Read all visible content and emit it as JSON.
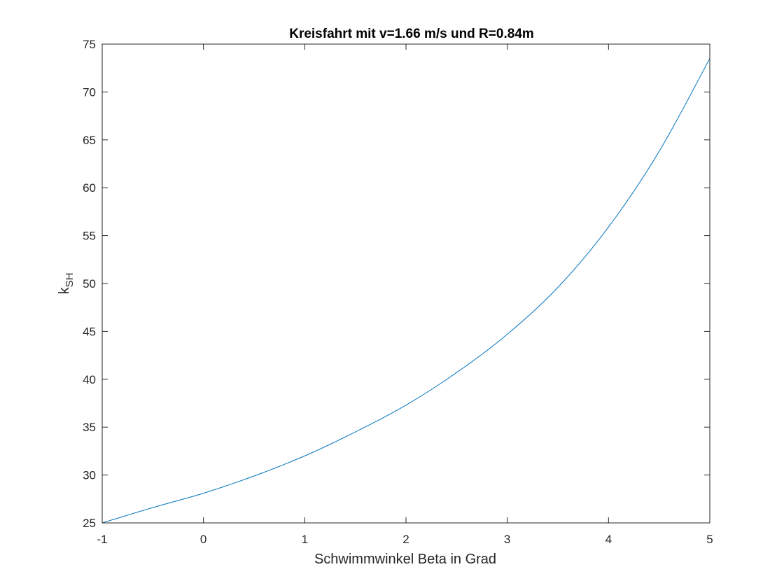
{
  "chart_data": {
    "type": "line",
    "title": "Kreisfahrt mit v=1.66 m/s und R=0.84m",
    "xlabel": "Schwimmwinkel Beta in Grad",
    "ylabel_main": "k",
    "ylabel_sub": "SH",
    "xlim": [
      -1,
      5
    ],
    "ylim": [
      25,
      75
    ],
    "xticks": [
      -1,
      0,
      1,
      2,
      3,
      4,
      5
    ],
    "yticks": [
      25,
      30,
      35,
      40,
      45,
      50,
      55,
      60,
      65,
      70,
      75
    ],
    "xtick_labels": [
      "-1",
      "0",
      "1",
      "2",
      "3",
      "4",
      "5"
    ],
    "ytick_labels": [
      "25",
      "30",
      "35",
      "40",
      "45",
      "50",
      "55",
      "60",
      "65",
      "70",
      "75"
    ],
    "grid": false,
    "line_color": "#0072BD",
    "series": [
      {
        "x": [
          -1,
          -0.5,
          0,
          0.5,
          1,
          1.5,
          2,
          2.5,
          3,
          3.5,
          4,
          4.5,
          5
        ],
        "y": [
          25.0,
          26.6,
          28.1,
          29.9,
          32.0,
          34.5,
          37.3,
          40.7,
          44.7,
          49.6,
          55.9,
          63.8,
          73.5
        ]
      }
    ]
  }
}
